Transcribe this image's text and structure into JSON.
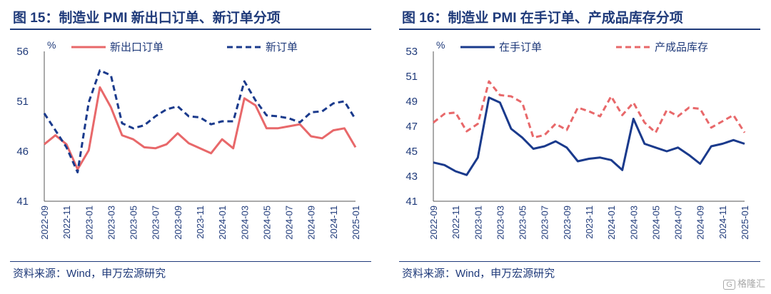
{
  "watermark": {
    "icon": "G",
    "text": "格隆汇"
  },
  "panels": [
    {
      "title": "图 15：制造业 PMI 新出口订单、新订单分项",
      "source": "资料来源：Wind，申万宏源研究"
    },
    {
      "title": "图 16：制造业 PMI 在手订单、产成品库存分项",
      "source": "资料来源：Wind，申万宏源研究"
    }
  ],
  "chart_data": [
    {
      "type": "line",
      "unit_label": "%",
      "ylim": [
        41,
        56
      ],
      "yticks": [
        41,
        46,
        51,
        56
      ],
      "x": [
        "2022-09",
        "2022-10",
        "2022-11",
        "2022-12",
        "2023-01",
        "2023-02",
        "2023-03",
        "2023-04",
        "2023-05",
        "2023-06",
        "2023-07",
        "2023-08",
        "2023-09",
        "2023-10",
        "2023-11",
        "2023-12",
        "2024-01",
        "2024-02",
        "2024-03",
        "2024-04",
        "2024-05",
        "2024-06",
        "2024-07",
        "2024-08",
        "2024-09",
        "2024-10",
        "2024-11",
        "2024-12",
        "2025-01"
      ],
      "xtick_labels": [
        "2022-09",
        "2022-11",
        "2023-01",
        "2023-03",
        "2023-05",
        "2023-07",
        "2023-09",
        "2023-11",
        "2024-01",
        "2024-03",
        "2024-05",
        "2024-07",
        "2024-09",
        "2024-11",
        "2025-01"
      ],
      "legend_position": "top",
      "series": [
        {
          "name": "新出口订单",
          "color": "#e8686a",
          "style": "solid",
          "values": [
            46.7,
            47.6,
            46.7,
            44.2,
            46.1,
            52.4,
            50.4,
            47.6,
            47.2,
            46.4,
            46.3,
            46.7,
            47.8,
            46.8,
            46.3,
            45.8,
            47.2,
            46.3,
            51.3,
            50.6,
            48.3,
            48.3,
            48.5,
            48.7,
            47.5,
            47.3,
            48.1,
            48.3,
            46.4
          ]
        },
        {
          "name": "新订单",
          "color": "#1a3a8c",
          "style": "dash",
          "values": [
            49.8,
            48.1,
            46.4,
            43.9,
            50.9,
            54.1,
            53.6,
            48.8,
            48.3,
            48.6,
            49.5,
            50.2,
            50.5,
            49.5,
            49.4,
            48.7,
            49.0,
            49.0,
            53.0,
            51.1,
            49.6,
            49.5,
            49.3,
            48.9,
            49.9,
            50.0,
            50.8,
            51.0,
            49.2
          ]
        }
      ]
    },
    {
      "type": "line",
      "unit_label": "%",
      "ylim": [
        41,
        53
      ],
      "yticks": [
        41,
        43,
        45,
        47,
        49,
        51,
        53
      ],
      "x": [
        "2022-09",
        "2022-10",
        "2022-11",
        "2022-12",
        "2023-01",
        "2023-02",
        "2023-03",
        "2023-04",
        "2023-05",
        "2023-06",
        "2023-07",
        "2023-08",
        "2023-09",
        "2023-10",
        "2023-11",
        "2023-12",
        "2024-01",
        "2024-02",
        "2024-03",
        "2024-04",
        "2024-05",
        "2024-06",
        "2024-07",
        "2024-08",
        "2024-09",
        "2024-10",
        "2024-11",
        "2024-12",
        "2025-01"
      ],
      "xtick_labels": [
        "2022-09",
        "2022-11",
        "2023-01",
        "2023-03",
        "2023-05",
        "2023-07",
        "2023-09",
        "2023-11",
        "2024-01",
        "2024-03",
        "2024-05",
        "2024-07",
        "2024-09",
        "2024-11",
        "2025-01"
      ],
      "legend_position": "top",
      "series": [
        {
          "name": "在手订单",
          "color": "#1a3a8c",
          "style": "solid",
          "values": [
            44.1,
            43.9,
            43.4,
            43.1,
            44.5,
            49.3,
            48.9,
            46.8,
            46.1,
            45.2,
            45.4,
            45.8,
            45.3,
            44.2,
            44.4,
            44.5,
            44.3,
            43.5,
            47.6,
            45.6,
            45.3,
            45.0,
            45.3,
            44.7,
            44.0,
            45.4,
            45.6,
            45.9,
            45.6
          ]
        },
        {
          "name": "产成品库存",
          "color": "#e8686a",
          "style": "dash",
          "values": [
            47.3,
            48.0,
            48.1,
            46.6,
            47.2,
            50.6,
            49.5,
            49.4,
            48.9,
            46.1,
            46.3,
            47.2,
            46.7,
            48.5,
            48.2,
            47.8,
            49.4,
            47.9,
            48.9,
            47.3,
            46.5,
            48.3,
            47.8,
            48.5,
            48.4,
            46.9,
            47.4,
            47.9,
            46.5
          ]
        }
      ]
    }
  ]
}
